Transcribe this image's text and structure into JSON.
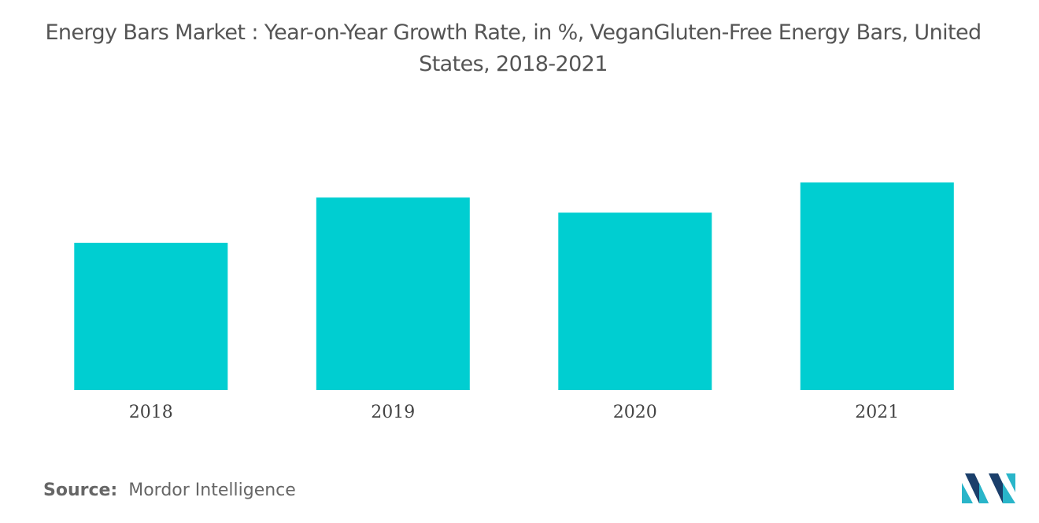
{
  "title_line1": "Energy Bars Market : Year-on-Year Growth Rate, in %, VeganGluten-Free Energy Bars, United",
  "title_line2": "States, 2018-2021",
  "source": {
    "label": "Source:",
    "value": "Mordor Intelligence"
  },
  "logo_icon": "mordor-intelligence-logo",
  "colors": {
    "bar": "#00CED1",
    "axis_text": "#444444",
    "logo_dark": "#1b3f6b",
    "logo_light": "#29b5c9"
  },
  "chart_data": {
    "type": "bar",
    "title": "Energy Bars Market : Year-on-Year Growth Rate, in %, VeganGluten-Free Energy Bars, United States, 2018-2021",
    "categories": [
      "2018",
      "2019",
      "2020",
      "2021"
    ],
    "values": [
      7.8,
      10.2,
      9.4,
      11.0
    ],
    "xlabel": "",
    "ylabel": "",
    "ylim": [
      0,
      12
    ],
    "grid": false,
    "legend": "none"
  }
}
